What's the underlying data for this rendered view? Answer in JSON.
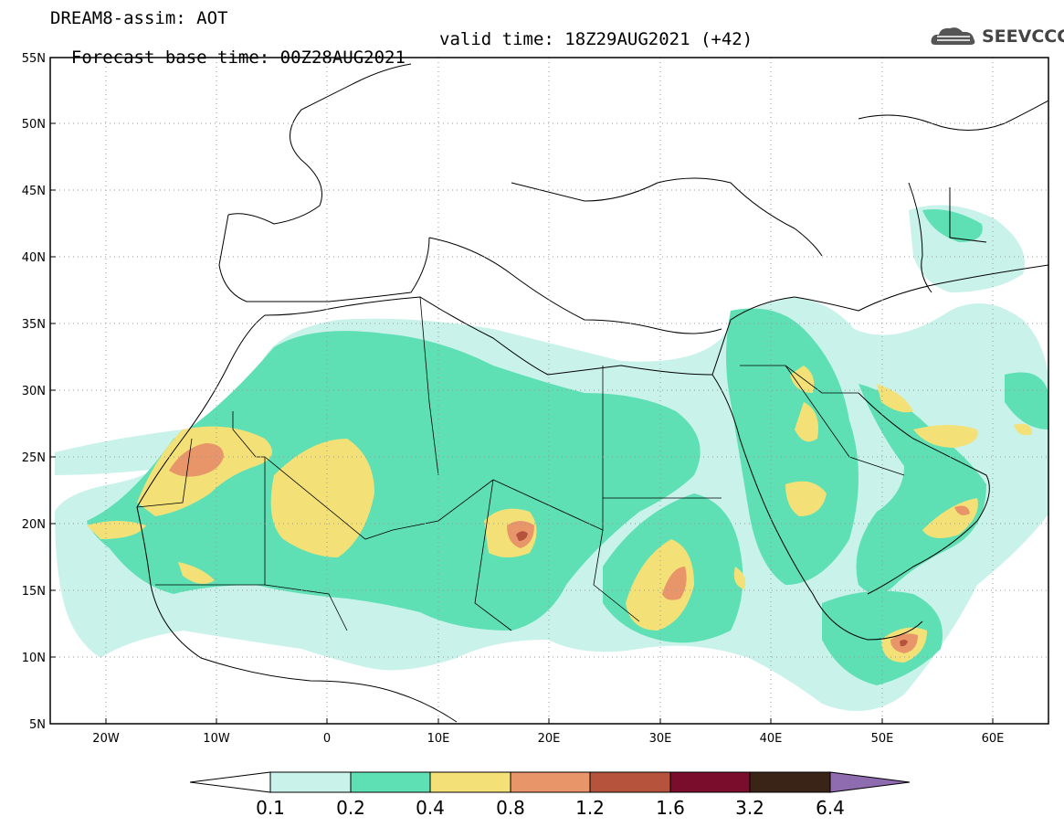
{
  "header": {
    "line1": "DREAM8-assim: AOT",
    "base_time": "Forecast base time: 00Z28AUG2021",
    "valid_time": "valid time: 18Z29AUG2021 (+42)"
  },
  "logo": {
    "text": "SEEVCCC",
    "icon": "cloud-logo-icon"
  },
  "map": {
    "lon_range": [
      -25,
      65
    ],
    "lat_range": [
      5,
      55
    ],
    "lat_labels": [
      "5N",
      "10N",
      "15N",
      "20N",
      "25N",
      "30N",
      "35N",
      "40N",
      "45N",
      "50N",
      "55N"
    ],
    "lon_labels": [
      "20W",
      "10W",
      "0",
      "10E",
      "20E",
      "30E",
      "40E",
      "50E",
      "60E"
    ]
  },
  "colorbar": {
    "levels": [
      "0.1",
      "0.2",
      "0.4",
      "0.8",
      "1.2",
      "1.6",
      "3.2",
      "6.4"
    ],
    "colors": {
      "c1": "#c8f2ea",
      "c2": "#5ee0b4",
      "c3": "#f3e177",
      "c4": "#e8956a",
      "c5": "#b5533c",
      "c6": "#7a0d2b",
      "c7": "#3a2418",
      "c8": "#8f6bb0"
    }
  }
}
